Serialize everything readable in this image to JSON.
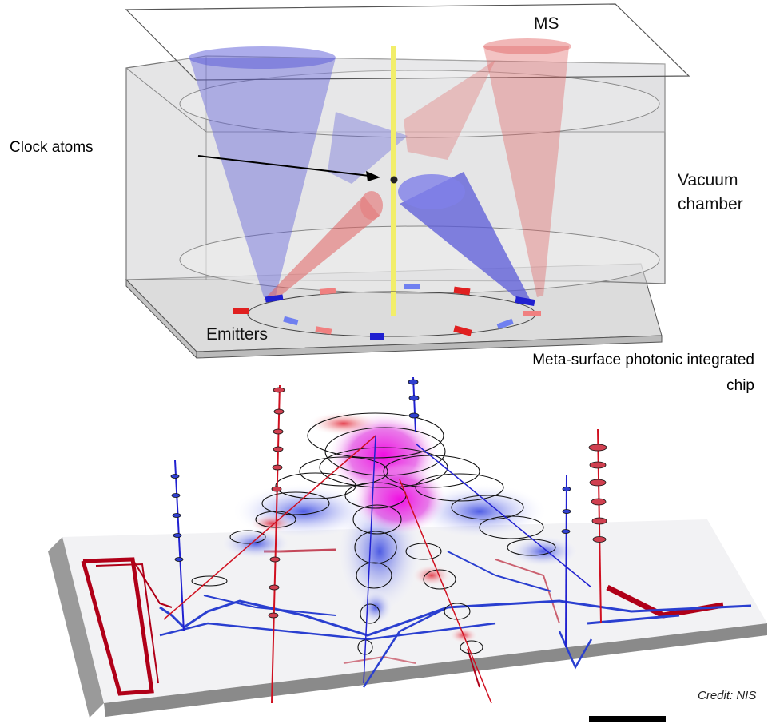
{
  "labels": {
    "ms": "MS",
    "clock_atoms": "Clock atoms",
    "vacuum_line1": "Vacuum",
    "vacuum_line2": "chamber",
    "emitters": "Emitters",
    "chip_line1": "Meta-surface photonic integrated",
    "chip_line2": "chip",
    "credit": "Credit: NIS"
  },
  "colors": {
    "red_beam": "#e06060",
    "blue_beam": "#5a5ad8",
    "chamber": "#c8c8cc",
    "atom_axis": "#f2ee6a",
    "chip_base": "#e6e6e6",
    "red_waveguide": "#b00018",
    "blue_waveguide": "#2a3fd0",
    "magenta_spot": "#e000d0"
  }
}
